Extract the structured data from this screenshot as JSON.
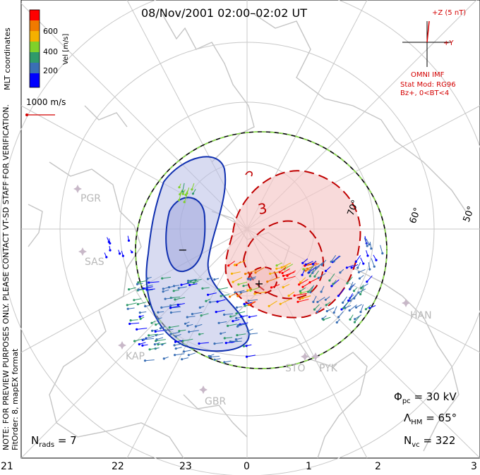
{
  "title": "08/Nov/2001 02:00–02:02 UT",
  "side_text": {
    "coords": "MLT coordinates",
    "note": "NOTE: FOR PREVIEW PURPOSES ONLY. PLEASE CONTACT VT-SD STAFF FOR VERIFICATION.",
    "fit": "FitOrder: 8, mapEX format"
  },
  "colorbar": {
    "title": "Vel [m/s]",
    "ticks": [
      "600",
      "400",
      "200"
    ],
    "colors": [
      "#0000ff",
      "#3a6fb5",
      "#2f9a6a",
      "#7fd12a",
      "#f5b000",
      "#f07a00",
      "#ff0000"
    ]
  },
  "scale_vector": "1000 m/s",
  "imf": {
    "z_label": "+Z (5 nT)",
    "y_label": "+Y",
    "source": "OMNI IMF",
    "model": "Stat Mod: RG96",
    "condition": "Bz+, 0<BT<4"
  },
  "stats": {
    "phi_pc": "= 30 kV",
    "lambda_hm": "= 65°",
    "n_vc": "= 322",
    "n_rads": "= 7"
  },
  "latitude_labels": [
    "70°",
    "60°",
    "50°"
  ],
  "mlt_ticks": [
    "21",
    "22",
    "23",
    "0",
    "1",
    "2",
    "3"
  ],
  "radar_sites": [
    "PGR",
    "SAS",
    "KAP",
    "GBR",
    "STO",
    "PYK",
    "HAN"
  ],
  "contour_labels": [
    "−",
    "+",
    "3"
  ],
  "colors": {
    "negative": "#1020a0",
    "positive": "#c00000",
    "boundary_dash": "#8adf4a"
  }
}
